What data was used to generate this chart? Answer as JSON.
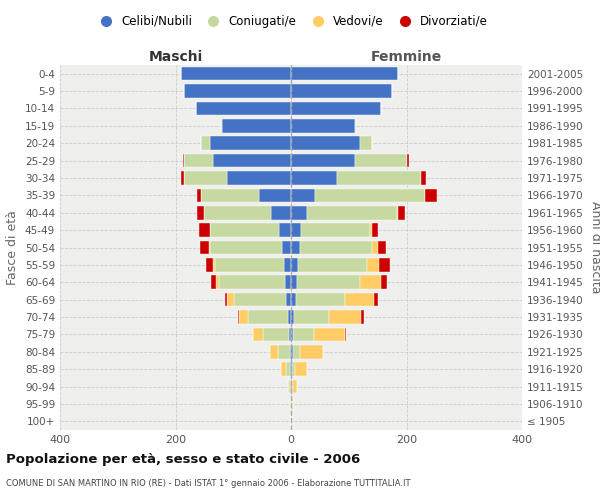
{
  "age_groups": [
    "100+",
    "95-99",
    "90-94",
    "85-89",
    "80-84",
    "75-79",
    "70-74",
    "65-69",
    "60-64",
    "55-59",
    "50-54",
    "45-49",
    "40-44",
    "35-39",
    "30-34",
    "25-29",
    "20-24",
    "15-19",
    "10-14",
    "5-9",
    "0-4"
  ],
  "birth_years": [
    "≤ 1905",
    "1906-1910",
    "1911-1915",
    "1916-1920",
    "1921-1925",
    "1926-1930",
    "1931-1935",
    "1936-1940",
    "1941-1945",
    "1946-1950",
    "1951-1955",
    "1956-1960",
    "1961-1965",
    "1966-1970",
    "1971-1975",
    "1976-1980",
    "1981-1985",
    "1986-1990",
    "1991-1995",
    "1996-2000",
    "2001-2005"
  ],
  "male": {
    "single": [
      0,
      0,
      0,
      1,
      2,
      3,
      5,
      8,
      10,
      12,
      15,
      20,
      35,
      55,
      110,
      135,
      140,
      120,
      165,
      185,
      190
    ],
    "married": [
      0,
      1,
      3,
      8,
      20,
      45,
      70,
      90,
      115,
      120,
      125,
      120,
      115,
      100,
      75,
      50,
      15,
      2,
      0,
      0,
      0
    ],
    "widowed": [
      0,
      0,
      2,
      8,
      15,
      18,
      15,
      12,
      5,
      3,
      2,
      1,
      0,
      0,
      0,
      0,
      0,
      0,
      0,
      0,
      0
    ],
    "divorced": [
      0,
      0,
      0,
      0,
      0,
      0,
      2,
      5,
      8,
      12,
      15,
      18,
      12,
      8,
      5,
      2,
      0,
      0,
      0,
      0,
      0
    ]
  },
  "female": {
    "single": [
      0,
      0,
      1,
      2,
      3,
      4,
      6,
      8,
      10,
      12,
      15,
      18,
      28,
      42,
      80,
      110,
      120,
      110,
      155,
      175,
      185
    ],
    "married": [
      0,
      1,
      2,
      5,
      12,
      35,
      60,
      85,
      110,
      120,
      125,
      118,
      155,
      190,
      145,
      90,
      20,
      3,
      0,
      0,
      0
    ],
    "widowed": [
      1,
      3,
      8,
      20,
      40,
      55,
      55,
      50,
      35,
      20,
      10,
      5,
      2,
      0,
      0,
      0,
      0,
      0,
      0,
      0,
      0
    ],
    "divorced": [
      0,
      0,
      0,
      0,
      0,
      2,
      5,
      8,
      12,
      20,
      15,
      10,
      12,
      20,
      8,
      5,
      0,
      0,
      0,
      0,
      0
    ]
  },
  "colors": {
    "single": "#4472C4",
    "married": "#C5D9A0",
    "widowed": "#FFCC66",
    "divorced": "#CC0000"
  },
  "xlim": 400,
  "title": "Popolazione per età, sesso e stato civile - 2006",
  "subtitle": "COMUNE DI SAN MARTINO IN RIO (RE) - Dati ISTAT 1° gennaio 2006 - Elaborazione TUTTITALIA.IT",
  "ylabel_left": "Fasce di età",
  "ylabel_right": "Anni di nascita",
  "legend_labels": [
    "Celibi/Nubili",
    "Coniugati/e",
    "Vedovi/e",
    "Divorziati/e"
  ],
  "maschi_label": "Maschi",
  "femmine_label": "Femmine",
  "bg_color": "#FFFFFF",
  "plot_bg": "#EFEFEE"
}
